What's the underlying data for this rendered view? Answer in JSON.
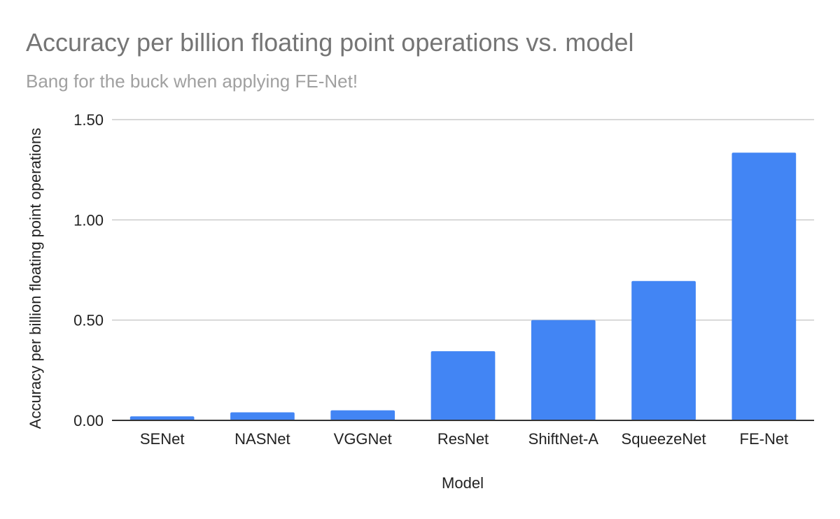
{
  "chart_data": {
    "type": "bar",
    "title": "Accuracy per billion floating point operations vs. model",
    "subtitle": "Bang for the buck when applying FE-Net!",
    "xlabel": "Model",
    "ylabel": "Accuracy per billion floating point operations",
    "categories": [
      "SENet",
      "NASNet",
      "VGGNet",
      "ResNet",
      "ShiftNet-A",
      "SqueezeNet",
      "FE-Net"
    ],
    "values": [
      0.02,
      0.04,
      0.05,
      0.345,
      0.5,
      0.695,
      1.335
    ],
    "ylim": [
      0,
      1.5
    ],
    "yticks": [
      0,
      0.5,
      1.0,
      1.5
    ],
    "ytick_labels": [
      "0.00",
      "0.50",
      "1.00",
      "1.50"
    ],
    "grid": true,
    "legend": "none",
    "colors": {
      "bar": "#4285f4",
      "gridline": "#cccccc",
      "axis": "#333333"
    }
  }
}
